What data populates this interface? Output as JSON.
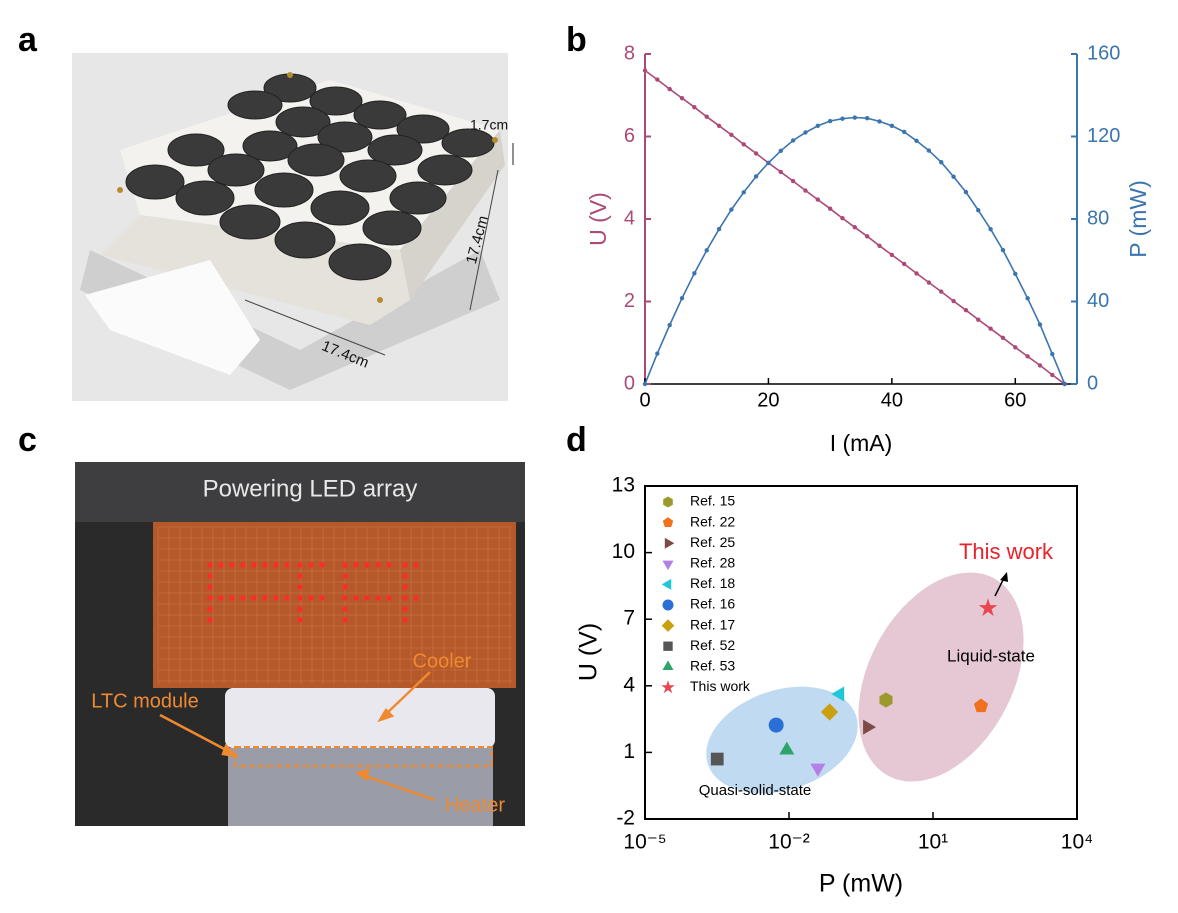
{
  "panels": [
    "a",
    "b",
    "c",
    "d"
  ],
  "photo_a": {
    "annotations": [
      "1.7cm",
      "17.4cm",
      "17.4cm"
    ]
  },
  "photo_c": {
    "caption": "Powering LED array",
    "labels": [
      "Cooler",
      "LTC module",
      "Heater"
    ]
  },
  "chart_data": [
    {
      "type": "line",
      "xlabel": "I (mA)",
      "ylabel": "U (V)",
      "y2label": "P (mW)",
      "xlim": [
        0,
        70
      ],
      "xticks": [
        0,
        20,
        40,
        60
      ],
      "ylim": [
        0,
        8
      ],
      "yticks": [
        0,
        2,
        4,
        6,
        8
      ],
      "y2lim": [
        0,
        160
      ],
      "y2ticks": [
        0,
        40,
        80,
        120,
        160
      ],
      "x": [
        0,
        2,
        4,
        6,
        8,
        10,
        12,
        14,
        16,
        18,
        20,
        22,
        24,
        26,
        28,
        30,
        32,
        34,
        36,
        38,
        40,
        42,
        44,
        46,
        48,
        50,
        52,
        54,
        56,
        58,
        60,
        62,
        64,
        66,
        68
      ],
      "series": [
        {
          "name": "U",
          "color": "#ab4a78",
          "values": [
            7.6,
            7.38,
            7.15,
            6.93,
            6.71,
            6.48,
            6.26,
            6.04,
            5.81,
            5.59,
            5.36,
            5.14,
            4.92,
            4.69,
            4.47,
            4.25,
            4.02,
            3.8,
            3.58,
            3.35,
            3.13,
            2.91,
            2.68,
            2.46,
            2.24,
            2.01,
            1.79,
            1.56,
            1.34,
            1.12,
            0.89,
            0.67,
            0.45,
            0.22,
            0
          ]
        },
        {
          "name": "P",
          "color": "#3b75ae",
          "axis": "y2",
          "values": [
            0,
            14.76,
            28.6,
            41.58,
            53.68,
            64.8,
            75.12,
            84.56,
            92.96,
            100.62,
            107.2,
            113.08,
            118.08,
            121.94,
            125.16,
            127.5,
            128.64,
            129.2,
            128.88,
            127.3,
            125.2,
            122.22,
            117.92,
            113.16,
            107.52,
            100.5,
            93.08,
            84.24,
            75.04,
            64.96,
            53.4,
            41.54,
            28.8,
            14.52,
            0
          ]
        }
      ]
    },
    {
      "type": "scatter",
      "xlabel": "P (mW)",
      "ylabel": "U (V)",
      "log_x": true,
      "xlim": [
        1e-05,
        10000
      ],
      "xticks": [
        {
          "value": 1e-05,
          "label": "10⁻⁵"
        },
        {
          "value": 0.01,
          "label": "10⁻²"
        },
        {
          "value": 10,
          "label": "10¹"
        },
        {
          "value": 10000,
          "label": "10⁴"
        }
      ],
      "ylim": [
        -2,
        13
      ],
      "yticks": [
        -2,
        1,
        4,
        7,
        10,
        13
      ],
      "annotations": [
        "This work",
        "Liquid-state",
        "Quasi-solid-state"
      ],
      "series": [
        {
          "name": "Ref. 15",
          "color": "#9c9a2c",
          "marker": "hexagon",
          "x": [
            1.05
          ],
          "values": [
            3.36
          ]
        },
        {
          "name": "Ref. 22",
          "color": "#f0701e",
          "marker": "pentagon",
          "x": [
            100
          ],
          "values": [
            3.09
          ]
        },
        {
          "name": "Ref. 25",
          "color": "#7d4a45",
          "marker": "triangle-right",
          "x": [
            0.43
          ],
          "values": [
            2.14
          ]
        },
        {
          "name": "Ref. 28",
          "color": "#b47fe6",
          "marker": "triangle-down",
          "x": [
            0.04
          ],
          "values": [
            0.3
          ]
        },
        {
          "name": "Ref. 18",
          "color": "#1fc8d8",
          "marker": "triangle-left",
          "x": [
            0.115
          ],
          "values": [
            3.63
          ]
        },
        {
          "name": "Ref. 16",
          "color": "#2a6fd6",
          "marker": "circle",
          "x": [
            0.0054
          ],
          "values": [
            2.23
          ]
        },
        {
          "name": "Ref. 17",
          "color": "#c9a010",
          "marker": "diamond",
          "x": [
            0.07
          ],
          "values": [
            2.82
          ]
        },
        {
          "name": "Ref. 52",
          "color": "#555555",
          "marker": "square",
          "x": [
            0.00032
          ],
          "values": [
            0.7
          ]
        },
        {
          "name": "Ref. 53",
          "color": "#2ea36a",
          "marker": "triangle-up",
          "x": [
            0.009
          ],
          "values": [
            1.1
          ]
        },
        {
          "name": "This work",
          "color": "#e8474f",
          "marker": "star",
          "x": [
            140
          ],
          "values": [
            7.5
          ]
        }
      ]
    }
  ]
}
